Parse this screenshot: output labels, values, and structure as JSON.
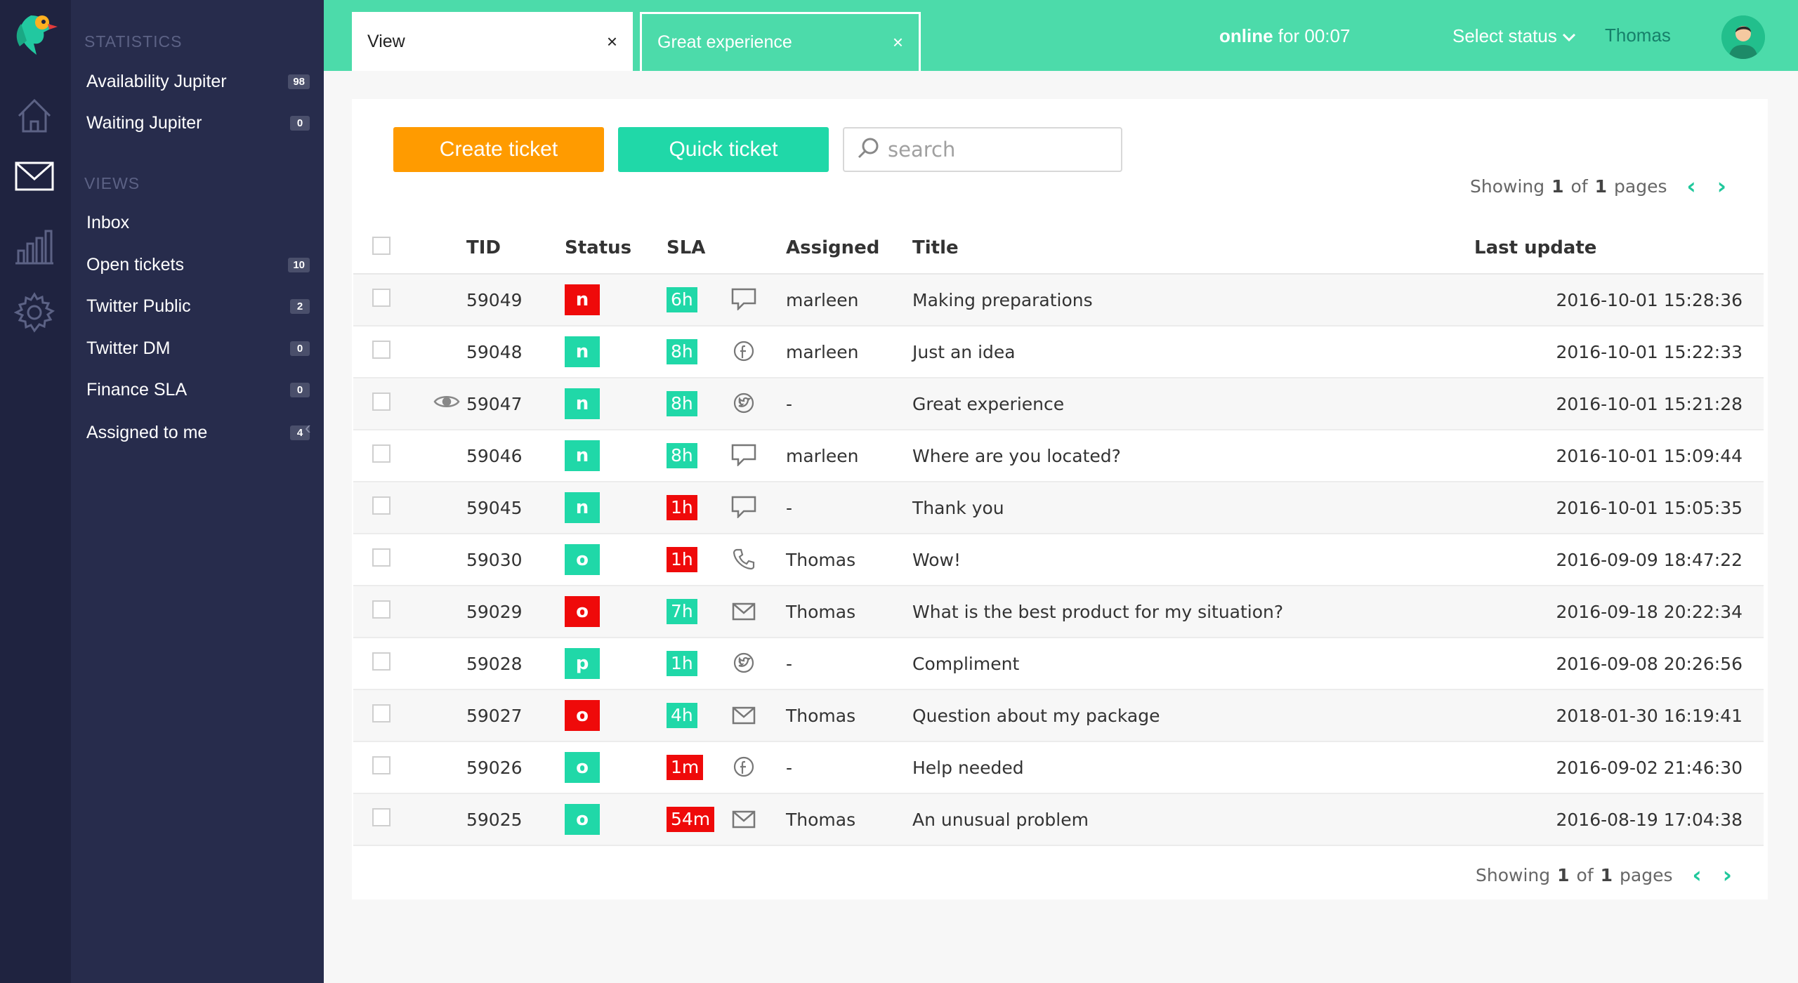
{
  "tabs": [
    {
      "label": "View",
      "close": "×"
    },
    {
      "label": "Great experience",
      "close": "×"
    }
  ],
  "topbar": {
    "online_bold": "online",
    "online_rest": "for 00:07",
    "select_status": "Select status",
    "user": "Thomas"
  },
  "nav": {
    "stats_heading": "STATISTICS",
    "stats": [
      {
        "label": "Availability Jupiter",
        "count": "98"
      },
      {
        "label": "Waiting Jupiter",
        "count": "0"
      }
    ],
    "views_heading": "VIEWS",
    "inbox": "Inbox",
    "views": [
      {
        "label": "Open tickets",
        "count": "10"
      },
      {
        "label": "Twitter Public",
        "count": "2"
      },
      {
        "label": "Twitter DM",
        "count": "0"
      },
      {
        "label": "Finance SLA",
        "count": "0"
      },
      {
        "label": "Assigned to me",
        "count": "4"
      }
    ]
  },
  "toolbar": {
    "create": "Create ticket",
    "quick": "Quick ticket",
    "search_placeholder": "search"
  },
  "pager": {
    "showing": "Showing",
    "page": "1",
    "of": "of",
    "total": "1",
    "pages": "pages"
  },
  "columns": {
    "tid": "TID",
    "status": "Status",
    "sla": "SLA",
    "assigned": "Assigned",
    "title": "Title",
    "last_update": "Last update"
  },
  "colors": {
    "accent": "#4cdbaa",
    "orange": "#ff9b00",
    "red": "#ef0a0a",
    "green": "#20d8a8",
    "sidebar": "#272c4c"
  },
  "rows": [
    {
      "tid": "59049",
      "status": "n",
      "status_color": "red",
      "sla": "6h",
      "sla_color": "green",
      "channel": "chat-icon",
      "assigned": "marleen",
      "title": "Making preparations",
      "updated": "2016-10-01 15:28:36",
      "viewing": false
    },
    {
      "tid": "59048",
      "status": "n",
      "status_color": "green",
      "sla": "8h",
      "sla_color": "green",
      "channel": "facebook-icon",
      "assigned": "marleen",
      "title": "Just an idea",
      "updated": "2016-10-01 15:22:33",
      "viewing": false
    },
    {
      "tid": "59047",
      "status": "n",
      "status_color": "green",
      "sla": "8h",
      "sla_color": "green",
      "channel": "twitter-icon",
      "assigned": "-",
      "title": "Great experience",
      "updated": "2016-10-01 15:21:28",
      "viewing": true
    },
    {
      "tid": "59046",
      "status": "n",
      "status_color": "green",
      "sla": "8h",
      "sla_color": "green",
      "channel": "chat-icon",
      "assigned": "marleen",
      "title": "Where are you located?",
      "updated": "2016-10-01 15:09:44",
      "viewing": false
    },
    {
      "tid": "59045",
      "status": "n",
      "status_color": "green",
      "sla": "1h",
      "sla_color": "red",
      "channel": "chat-icon",
      "assigned": "-",
      "title": "Thank you",
      "updated": "2016-10-01 15:05:35",
      "viewing": false
    },
    {
      "tid": "59030",
      "status": "o",
      "status_color": "green",
      "sla": "1h",
      "sla_color": "red",
      "channel": "phone-icon",
      "assigned": "Thomas",
      "title": "Wow!",
      "updated": "2016-09-09 18:47:22",
      "viewing": false
    },
    {
      "tid": "59029",
      "status": "o",
      "status_color": "red",
      "sla": "7h",
      "sla_color": "green",
      "channel": "mail-icon",
      "assigned": "Thomas",
      "title": "What is the best product for my situation?",
      "updated": "2016-09-18 20:22:34",
      "viewing": false
    },
    {
      "tid": "59028",
      "status": "p",
      "status_color": "green",
      "sla": "1h",
      "sla_color": "green",
      "channel": "twitter-icon",
      "assigned": "-",
      "title": "Compliment",
      "updated": "2016-09-08 20:26:56",
      "viewing": false
    },
    {
      "tid": "59027",
      "status": "o",
      "status_color": "red",
      "sla": "4h",
      "sla_color": "green",
      "channel": "mail-icon",
      "assigned": "Thomas",
      "title": "Question about my package",
      "updated": "2018-01-30 16:19:41",
      "viewing": false
    },
    {
      "tid": "59026",
      "status": "o",
      "status_color": "green",
      "sla": "1m",
      "sla_color": "red",
      "channel": "facebook-icon",
      "assigned": "-",
      "title": "Help needed",
      "updated": "2016-09-02 21:46:30",
      "viewing": false
    },
    {
      "tid": "59025",
      "status": "o",
      "status_color": "green",
      "sla": "54m",
      "sla_color": "red",
      "channel": "mail-icon",
      "assigned": "Thomas",
      "title": "An unusual problem",
      "updated": "2016-08-19 17:04:38",
      "viewing": false
    }
  ]
}
